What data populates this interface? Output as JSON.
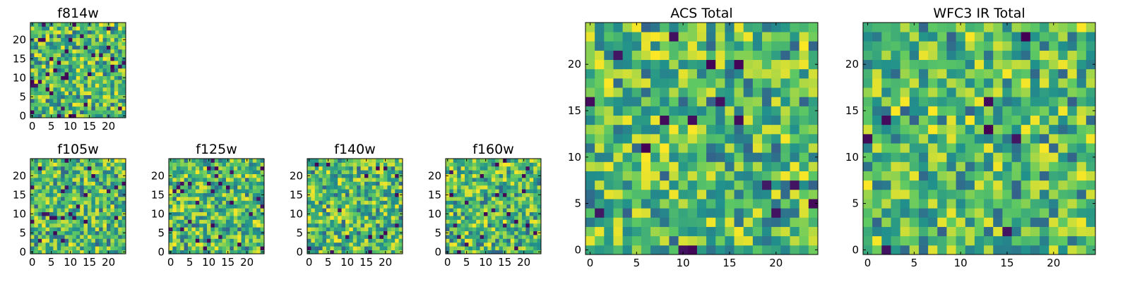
{
  "figure": {
    "colormap": [
      "#440154",
      "#3b528b",
      "#21918c",
      "#5ec962",
      "#fde725"
    ],
    "background": "#ffffff"
  },
  "chart_data": [
    {
      "id": "f814w",
      "type": "heatmap",
      "title": "f814w",
      "grid": [
        25,
        25
      ],
      "xlim": [
        0,
        24
      ],
      "ylim": [
        0,
        24
      ],
      "xticks": [
        0,
        5,
        10,
        15,
        20
      ],
      "yticks": [
        0,
        5,
        10,
        15,
        20
      ],
      "seed": 11,
      "cold_fraction": 0.06
    },
    {
      "id": "f105w",
      "type": "heatmap",
      "title": "f105w",
      "grid": [
        25,
        25
      ],
      "xlim": [
        0,
        24
      ],
      "ylim": [
        0,
        24
      ],
      "xticks": [
        0,
        5,
        10,
        15,
        20
      ],
      "yticks": [
        0,
        5,
        10,
        15,
        20
      ],
      "seed": 23,
      "cold_fraction": 0.03
    },
    {
      "id": "f125w",
      "type": "heatmap",
      "title": "f125w",
      "grid": [
        25,
        25
      ],
      "xlim": [
        0,
        24
      ],
      "ylim": [
        0,
        24
      ],
      "xticks": [
        0,
        5,
        10,
        15,
        20
      ],
      "yticks": [
        0,
        5,
        10,
        15,
        20
      ],
      "seed": 37,
      "cold_fraction": 0.04
    },
    {
      "id": "f140w",
      "type": "heatmap",
      "title": "f140w",
      "grid": [
        25,
        25
      ],
      "xlim": [
        0,
        24
      ],
      "ylim": [
        0,
        24
      ],
      "xticks": [
        0,
        5,
        10,
        15,
        20
      ],
      "yticks": [
        0,
        5,
        10,
        15,
        20
      ],
      "seed": 41,
      "cold_fraction": 0.04
    },
    {
      "id": "f160w",
      "type": "heatmap",
      "title": "f160w",
      "grid": [
        25,
        25
      ],
      "xlim": [
        0,
        24
      ],
      "ylim": [
        0,
        24
      ],
      "xticks": [
        0,
        5,
        10,
        15,
        20
      ],
      "yticks": [
        0,
        5,
        10,
        15,
        20
      ],
      "seed": 53,
      "cold_fraction": 0.04
    },
    {
      "id": "acs_total",
      "type": "heatmap",
      "title": "ACS Total",
      "grid": [
        25,
        25
      ],
      "xlim": [
        0,
        24
      ],
      "ylim": [
        0,
        24
      ],
      "xticks": [
        0,
        5,
        10,
        15,
        20
      ],
      "yticks": [
        0,
        5,
        10,
        15,
        20
      ],
      "seed": 67,
      "cold_fraction": 0.02
    },
    {
      "id": "wfc3_ir_total",
      "type": "heatmap",
      "title": "WFC3 IR Total",
      "grid": [
        25,
        25
      ],
      "xlim": [
        0,
        24
      ],
      "ylim": [
        0,
        24
      ],
      "xticks": [
        0,
        5,
        10,
        15,
        20
      ],
      "yticks": [
        0,
        5,
        10,
        15,
        20
      ],
      "seed": 79,
      "cold_fraction": 0.02
    }
  ]
}
